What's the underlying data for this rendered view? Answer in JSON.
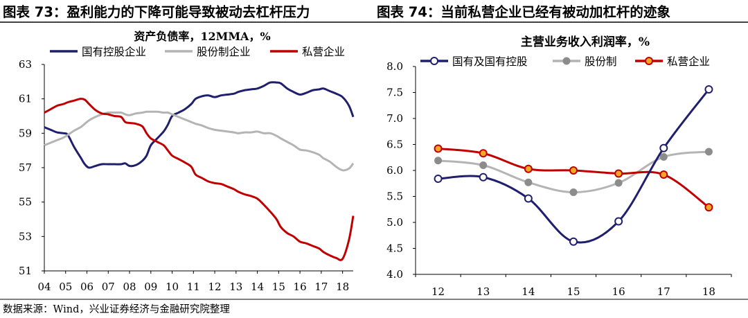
{
  "header": {
    "left_title": "图表 73：盈利能力的下降可能导致被动去杠杆压力",
    "right_title": "图表 74：当前私营企业已经有被动加杠杆的迹象"
  },
  "footer": {
    "source": "数据来源：Wind，兴业证券经济与金融研究院整理"
  },
  "chart_data": [
    {
      "type": "line",
      "title": "资产负债率，12MMA，%",
      "ylim": [
        51,
        63
      ],
      "yticks": [
        "51",
        "53",
        "55",
        "57",
        "59",
        "61",
        "63"
      ],
      "categories": [
        "04",
        "05",
        "06",
        "07",
        "08",
        "09",
        "10",
        "11",
        "12",
        "13",
        "14",
        "15",
        "16",
        "17",
        "18"
      ],
      "grid": false,
      "legend": "top",
      "series": [
        {
          "name": "国有控股企业",
          "color": "#1f1f6e",
          "x": [
            2004.0,
            2004.3,
            2004.6,
            2004.9,
            2005.1,
            2005.4,
            2005.7,
            2005.9,
            2006.1,
            2006.4,
            2006.7,
            2007.0,
            2007.3,
            2007.6,
            2007.8,
            2008.0,
            2008.3,
            2008.6,
            2008.8,
            2009.0,
            2009.3,
            2009.6,
            2009.8,
            2010.0,
            2010.3,
            2010.6,
            2010.9,
            2011.1,
            2011.4,
            2011.7,
            2012.0,
            2012.3,
            2012.6,
            2012.9,
            2013.1,
            2013.4,
            2013.7,
            2014.0,
            2014.3,
            2014.6,
            2014.9,
            2015.1,
            2015.4,
            2015.7,
            2016.0,
            2016.3,
            2016.6,
            2016.9,
            2017.1,
            2017.4,
            2017.7,
            2018.0,
            2018.3,
            2018.5
          ],
          "values": [
            59.35,
            59.2,
            59.05,
            59.0,
            58.9,
            58.2,
            57.6,
            57.2,
            57.0,
            57.1,
            57.2,
            57.2,
            57.2,
            57.2,
            57.25,
            57.1,
            57.15,
            57.4,
            57.7,
            58.3,
            58.7,
            59.1,
            59.5,
            60.0,
            60.2,
            60.4,
            60.7,
            61.0,
            61.15,
            61.2,
            61.1,
            61.2,
            61.25,
            61.3,
            61.4,
            61.5,
            61.55,
            61.6,
            61.75,
            61.95,
            61.95,
            61.9,
            61.6,
            61.4,
            61.25,
            61.35,
            61.5,
            61.55,
            61.6,
            61.45,
            61.3,
            61.1,
            60.6,
            59.95
          ]
        },
        {
          "name": "股份制企业",
          "color": "#b4b4b4",
          "x": [
            2004.0,
            2004.3,
            2004.6,
            2004.9,
            2005.1,
            2005.4,
            2005.7,
            2005.9,
            2006.1,
            2006.4,
            2006.7,
            2007.0,
            2007.3,
            2007.6,
            2007.8,
            2008.0,
            2008.3,
            2008.6,
            2008.8,
            2009.0,
            2009.3,
            2009.6,
            2009.8,
            2010.0,
            2010.3,
            2010.6,
            2010.9,
            2011.1,
            2011.4,
            2011.7,
            2012.0,
            2012.3,
            2012.6,
            2012.9,
            2013.1,
            2013.4,
            2013.7,
            2014.0,
            2014.3,
            2014.6,
            2014.9,
            2015.1,
            2015.4,
            2015.7,
            2016.0,
            2016.3,
            2016.6,
            2016.9,
            2017.1,
            2017.4,
            2017.7,
            2018.0,
            2018.3,
            2018.5
          ],
          "values": [
            58.3,
            58.45,
            58.6,
            58.75,
            58.9,
            59.15,
            59.35,
            59.55,
            59.75,
            59.95,
            60.1,
            60.2,
            60.2,
            60.2,
            60.1,
            60.05,
            60.15,
            60.2,
            60.25,
            60.25,
            60.25,
            60.2,
            60.2,
            60.1,
            59.95,
            59.8,
            59.65,
            59.55,
            59.45,
            59.3,
            59.2,
            59.15,
            59.1,
            59.05,
            59.0,
            59.05,
            59.05,
            59.1,
            59.0,
            59.0,
            58.85,
            58.7,
            58.5,
            58.3,
            58.05,
            58.0,
            57.9,
            57.75,
            57.55,
            57.35,
            57.05,
            56.85,
            56.95,
            57.25
          ]
        },
        {
          "name": "私营企业",
          "color": "#c00000",
          "x": [
            2004.0,
            2004.3,
            2004.6,
            2004.9,
            2005.1,
            2005.4,
            2005.7,
            2005.9,
            2006.1,
            2006.4,
            2006.7,
            2007.0,
            2007.3,
            2007.6,
            2007.8,
            2008.0,
            2008.3,
            2008.6,
            2008.8,
            2009.0,
            2009.3,
            2009.6,
            2009.8,
            2010.0,
            2010.3,
            2010.6,
            2010.9,
            2011.1,
            2011.4,
            2011.7,
            2012.0,
            2012.3,
            2012.6,
            2012.9,
            2013.1,
            2013.4,
            2013.7,
            2014.0,
            2014.3,
            2014.6,
            2014.9,
            2015.1,
            2015.4,
            2015.7,
            2016.0,
            2016.3,
            2016.6,
            2016.9,
            2017.1,
            2017.4,
            2017.7,
            2018.0,
            2018.3,
            2018.5
          ],
          "values": [
            60.2,
            60.4,
            60.6,
            60.7,
            60.8,
            60.9,
            61.0,
            60.95,
            60.7,
            60.35,
            60.15,
            60.1,
            60.0,
            59.95,
            59.65,
            59.6,
            59.55,
            59.4,
            59.0,
            58.7,
            58.5,
            58.3,
            58.0,
            57.7,
            57.5,
            57.3,
            57.05,
            56.6,
            56.4,
            56.2,
            56.1,
            56.05,
            55.9,
            55.75,
            55.6,
            55.45,
            55.35,
            55.2,
            54.85,
            54.45,
            54.0,
            53.55,
            53.2,
            53.0,
            52.7,
            52.6,
            52.45,
            52.3,
            52.1,
            51.9,
            51.75,
            51.7,
            52.8,
            54.2
          ]
        }
      ]
    },
    {
      "type": "line",
      "title": "主营业务收入利润率，%",
      "ylim": [
        4.0,
        8.0
      ],
      "yticks": [
        "4.0",
        "4.5",
        "5.0",
        "5.5",
        "6.0",
        "6.5",
        "7.0",
        "7.5",
        "8.0"
      ],
      "categories": [
        "12",
        "13",
        "14",
        "15",
        "16",
        "17",
        "18"
      ],
      "grid": false,
      "legend": "top",
      "series": [
        {
          "name": "国有及国有控股",
          "color": "#1f1f6e",
          "marker": "hollow-circle",
          "values": [
            5.84,
            5.87,
            5.46,
            4.63,
            5.02,
            6.43,
            7.56
          ]
        },
        {
          "name": "股份制",
          "color": "#b4b4b4",
          "marker": "filled-circle",
          "values": [
            6.19,
            6.1,
            5.77,
            5.58,
            5.76,
            6.26,
            6.36
          ]
        },
        {
          "name": "私营企业",
          "color": "#c00000",
          "marker": "orange-circle",
          "values": [
            6.42,
            6.33,
            6.03,
            6.0,
            5.94,
            5.92,
            5.29
          ]
        }
      ]
    }
  ]
}
